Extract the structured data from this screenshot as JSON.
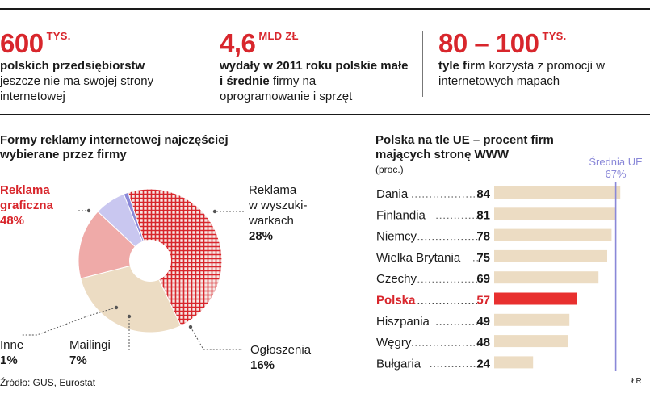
{
  "stats": [
    {
      "value": "600",
      "unit": "TYS.",
      "bold": "polskich przedsiębiorstw",
      "rest": "jeszcze nie ma swojej strony internetowej"
    },
    {
      "value": "4,6",
      "unit": "MLD ZŁ",
      "bold": "wydały w 2011 roku polskie małe i średnie",
      "rest": "firmy na oprogramowanie i sprzęt"
    },
    {
      "value": "80 – 100",
      "unit": "TYS.",
      "bold": "tyle firm",
      "rest": "korzysta z promocji w internetowych mapach"
    }
  ],
  "pie": {
    "title_line1": "Formy reklamy internetowej najczęściej",
    "title_line2": "wybierane przez firmy",
    "labels": {
      "graficzna_line1": "Reklama",
      "graficzna_line2": "graficzna",
      "graficzna_pct": "48%",
      "wyszuk_line1": "Reklama",
      "wyszuk_line2": "w wyszuki-",
      "wyszuk_line3": "warkach",
      "wyszuk_pct": "28%",
      "oglosz_line1": "Ogłoszenia",
      "oglosz_pct": "16%",
      "mailingi_line1": "Mailingi",
      "mailingi_pct": "7%",
      "inne_line1": "Inne",
      "inne_pct": "1%"
    }
  },
  "bars": {
    "title_line1": "Polska na tle UE – procent firm",
    "title_line2": "mających stronę WWW",
    "unit": "(proc.)",
    "avg_label": "Średnia UE",
    "avg_value": "67%"
  },
  "source": "Źródło: GUS, Eurostat",
  "credit": "ŁR",
  "colors": {
    "accent_red": "#d8262c",
    "grafika": "#d8262c",
    "wyszukiwarki": "#ecdcc3",
    "ogloszenia": "#efaaa8",
    "mailingi": "#c9c7f0",
    "inne": "#8a88d8",
    "bar_bg": "#ecdcc3",
    "bar_highlight": "#e8302f",
    "avg_line": "#8a88d8"
  },
  "chart_data": [
    {
      "type": "pie",
      "title": "Formy reklamy internetowej najczęściej wybierane przez firmy",
      "slices": [
        {
          "label": "Reklama graficzna",
          "value": 48
        },
        {
          "label": "Reklama w wyszukiwarkach",
          "value": 28
        },
        {
          "label": "Ogłoszenia",
          "value": 16
        },
        {
          "label": "Mailingi",
          "value": 7
        },
        {
          "label": "Inne",
          "value": 1
        }
      ]
    },
    {
      "type": "bar",
      "orientation": "horizontal",
      "title": "Polska na tle UE – procent firm mających stronę WWW",
      "unit": "(proc.)",
      "categories": [
        "Dania",
        "Finlandia",
        "Niemcy",
        "Wielka Brytania",
        "Czechy",
        "Polska",
        "Hiszpania",
        "Węgry",
        "Bułgaria"
      ],
      "values": [
        84,
        81,
        78,
        75,
        69,
        57,
        49,
        48,
        24
      ],
      "highlight": "Polska",
      "reference_line": {
        "label": "Średnia UE",
        "value": 67
      },
      "xlim": [
        0,
        100
      ]
    }
  ]
}
